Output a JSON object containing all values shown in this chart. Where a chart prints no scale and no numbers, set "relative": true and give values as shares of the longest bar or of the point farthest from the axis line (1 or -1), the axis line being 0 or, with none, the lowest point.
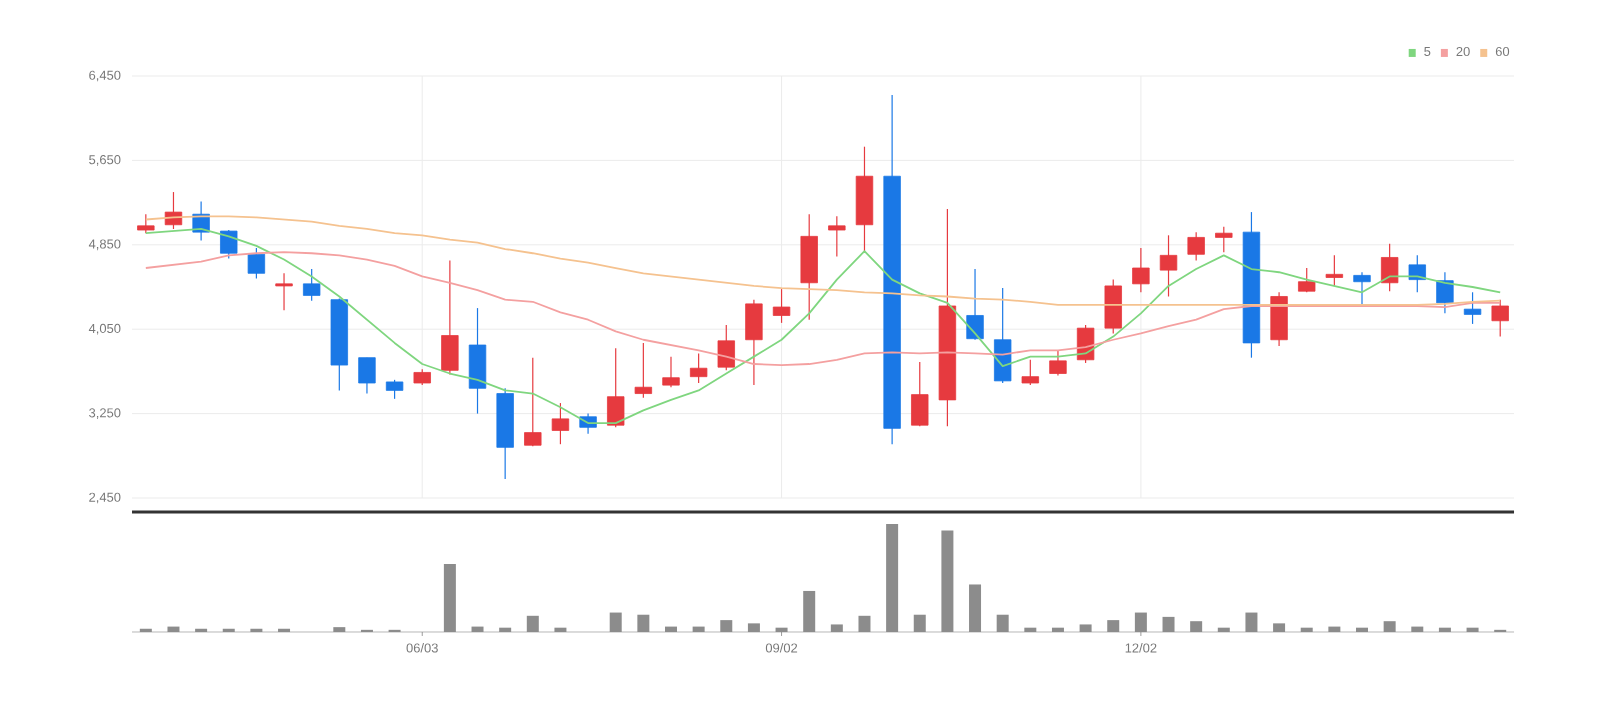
{
  "chart_data": [
    {
      "type": "candlestick",
      "categories": [
        null,
        null,
        null,
        null,
        null,
        null,
        null,
        null,
        null,
        null,
        null,
        null,
        null,
        null,
        null,
        null,
        null,
        null,
        null,
        null,
        null,
        null,
        null,
        null,
        null,
        null,
        null,
        null,
        null,
        null,
        null,
        null,
        null,
        null,
        null,
        null,
        null,
        null,
        null,
        null,
        null,
        null,
        null,
        null,
        null,
        null,
        null,
        null,
        null,
        null
      ],
      "ohlc": [
        [
          4990,
          5140,
          4960,
          5030
        ],
        [
          5040,
          5350,
          5000,
          5160
        ],
        [
          5140,
          5260,
          4890,
          4970
        ],
        [
          4980,
          4990,
          4720,
          4770
        ],
        [
          4760,
          4820,
          4530,
          4580
        ],
        [
          4460,
          4580,
          4230,
          4480
        ],
        [
          4480,
          4620,
          4320,
          4370
        ],
        [
          4330,
          4340,
          3470,
          3710
        ],
        [
          3780,
          3780,
          3440,
          3540
        ],
        [
          3550,
          3570,
          3390,
          3470
        ],
        [
          3540,
          3670,
          3520,
          3640
        ],
        [
          3660,
          4700,
          3620,
          3990
        ],
        [
          3900,
          4250,
          3250,
          3490
        ],
        [
          3440,
          3490,
          2630,
          2930
        ],
        [
          2950,
          3780,
          2940,
          3070
        ],
        [
          3090,
          3350,
          2960,
          3200
        ],
        [
          3220,
          3250,
          3060,
          3120
        ],
        [
          3140,
          3870,
          3120,
          3410
        ],
        [
          3440,
          3920,
          3400,
          3500
        ],
        [
          3520,
          3790,
          3500,
          3590
        ],
        [
          3600,
          3820,
          3540,
          3680
        ],
        [
          3690,
          4090,
          3660,
          3940
        ],
        [
          3950,
          4330,
          3520,
          4290
        ],
        [
          4180,
          4430,
          4110,
          4260
        ],
        [
          4490,
          5140,
          4140,
          4930
        ],
        [
          4990,
          5120,
          4740,
          5030
        ],
        [
          5040,
          5780,
          4790,
          5500
        ],
        [
          5500,
          6270,
          2960,
          3110
        ],
        [
          3140,
          3740,
          3130,
          3430
        ],
        [
          3380,
          5190,
          3130,
          4270
        ],
        [
          4180,
          4620,
          3950,
          3960
        ],
        [
          3950,
          4440,
          3540,
          3560
        ],
        [
          3540,
          3760,
          3520,
          3600
        ],
        [
          3630,
          3850,
          3610,
          3750
        ],
        [
          3760,
          4090,
          3730,
          4060
        ],
        [
          4060,
          4520,
          4010,
          4460
        ],
        [
          4480,
          4820,
          4400,
          4630
        ],
        [
          4610,
          4940,
          4360,
          4750
        ],
        [
          4760,
          4970,
          4700,
          4920
        ],
        [
          4920,
          5020,
          4780,
          4960
        ],
        [
          4970,
          5160,
          3780,
          3920
        ],
        [
          3950,
          4400,
          3890,
          4360
        ],
        [
          4410,
          4630,
          4400,
          4500
        ],
        [
          4540,
          4750,
          4460,
          4570
        ],
        [
          4560,
          4590,
          4270,
          4500
        ],
        [
          4490,
          4860,
          4410,
          4730
        ],
        [
          4660,
          4750,
          4400,
          4520
        ],
        [
          4510,
          4590,
          4200,
          4300
        ],
        [
          4240,
          4400,
          4100,
          4190
        ],
        [
          4130,
          4330,
          3980,
          4270
        ]
      ],
      "colors": [
        "#e63a3f",
        "#e63a3f",
        "#1a78e6",
        "#1a78e6",
        "#1a78e6",
        "#e63a3f",
        "#1a78e6",
        "#1a78e6",
        "#1a78e6",
        "#1a78e6",
        "#e63a3f",
        "#e63a3f",
        "#1a78e6",
        "#1a78e6",
        "#e63a3f",
        "#e63a3f",
        "#1a78e6",
        "#e63a3f",
        "#e63a3f",
        "#e63a3f",
        "#e63a3f",
        "#e63a3f",
        "#e63a3f",
        "#e63a3f",
        "#e63a3f",
        "#e63a3f",
        "#e63a3f",
        "#1a78e6",
        "#e63a3f",
        "#e63a3f",
        "#1a78e6",
        "#1a78e6",
        "#e63a3f",
        "#e63a3f",
        "#e63a3f",
        "#e63a3f",
        "#e63a3f",
        "#e63a3f",
        "#e63a3f",
        "#e63a3f",
        "#1a78e6",
        "#e63a3f",
        "#e63a3f",
        "#e63a3f",
        "#1a78e6",
        "#e63a3f",
        "#1a78e6",
        "#1a78e6",
        "#1a78e6",
        "#e63a3f"
      ],
      "series": [
        {
          "type": "line",
          "name": "5",
          "color": "#7fd67f",
          "values": [
            4960,
            4980,
            5000,
            4930,
            4840,
            4710,
            4550,
            4360,
            4140,
            3920,
            3720,
            3630,
            3570,
            3470,
            3440,
            3310,
            3160,
            3160,
            3280,
            3380,
            3470,
            3630,
            3790,
            3950,
            4200,
            4520,
            4790,
            4520,
            4390,
            4300,
            4010,
            3700,
            3790,
            3790,
            3820,
            3980,
            4200,
            4460,
            4620,
            4750,
            4620,
            4590,
            4520,
            4460,
            4400,
            4550,
            4550,
            4490,
            4450,
            4400
          ]
        },
        {
          "type": "line",
          "name": "20",
          "color": "#f4a0a0",
          "values": [
            4630,
            4660,
            4690,
            4750,
            4770,
            4780,
            4770,
            4750,
            4710,
            4650,
            4550,
            4490,
            4420,
            4330,
            4310,
            4210,
            4140,
            4030,
            3950,
            3900,
            3850,
            3790,
            3720,
            3710,
            3720,
            3760,
            3820,
            3830,
            3820,
            3830,
            3820,
            3810,
            3850,
            3850,
            3880,
            3950,
            4010,
            4080,
            4140,
            4240,
            4270,
            4270,
            4270,
            4270,
            4270,
            4270,
            4270,
            4260,
            4300,
            4300
          ]
        },
        {
          "type": "line",
          "name": "60",
          "color": "#f5c28f",
          "values": [
            5090,
            5110,
            5120,
            5120,
            5110,
            5090,
            5070,
            5030,
            5000,
            4960,
            4940,
            4900,
            4870,
            4810,
            4770,
            4720,
            4680,
            4630,
            4580,
            4550,
            4520,
            4490,
            4460,
            4440,
            4430,
            4420,
            4400,
            4390,
            4370,
            4360,
            4340,
            4330,
            4310,
            4280,
            4280,
            4280,
            4280,
            4280,
            4280,
            4280,
            4280,
            4280,
            4280,
            4280,
            4280,
            4280,
            4280,
            4290,
            4310,
            4320
          ]
        }
      ],
      "ylim": [
        2450,
        6450
      ],
      "yticks": [
        {
          "value": 2450,
          "label": "2,450"
        },
        {
          "value": 3250,
          "label": "3,250"
        },
        {
          "value": 4050,
          "label": "4,050"
        },
        {
          "value": 4850,
          "label": "4,850"
        },
        {
          "value": 5650,
          "label": "5,650"
        },
        {
          "value": 6450,
          "label": "6,450"
        }
      ],
      "grid": true,
      "legend": "top right",
      "tick_labels": "y"
    },
    {
      "type": "bar",
      "relative": true,
      "color": "#8c8c8c",
      "tick_labels": "x",
      "categories": [
        null,
        null,
        null,
        null,
        null,
        null,
        null,
        null,
        null,
        null,
        "06/03",
        null,
        null,
        null,
        null,
        null,
        null,
        null,
        null,
        null,
        null,
        null,
        null,
        "09/02",
        null,
        null,
        null,
        null,
        null,
        null,
        null,
        null,
        null,
        null,
        null,
        null,
        "12/02",
        null,
        null,
        null,
        null,
        null,
        null,
        null,
        null,
        null,
        null,
        null,
        null,
        null
      ],
      "values": [
        0.03,
        0.05,
        0.03,
        0.03,
        0.03,
        0.03,
        null,
        0.045,
        0.02,
        0.02,
        null,
        0.63,
        0.05,
        0.04,
        0.15,
        0.04,
        null,
        0.18,
        0.16,
        0.05,
        0.05,
        0.11,
        0.08,
        0.04,
        0.38,
        0.07,
        0.15,
        1,
        0.16,
        0.94,
        0.44,
        0.16,
        0.04,
        0.04,
        0.07,
        0.11,
        0.18,
        0.14,
        0.1,
        0.04,
        0.18,
        0.08,
        0.04,
        0.05,
        0.04,
        0.1,
        0.05,
        0.04,
        0.04,
        0.02
      ]
    }
  ]
}
